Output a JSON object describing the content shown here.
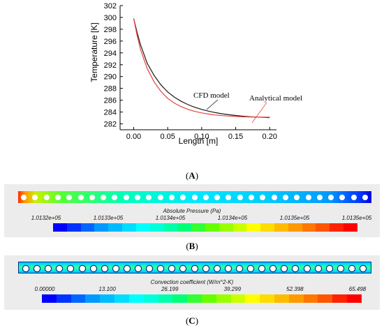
{
  "chart_data": [
    {
      "type": "line",
      "xlabel": "Length [m]",
      "ylabel": "Temperature [K]",
      "xlim": [
        -0.02,
        0.21
      ],
      "ylim": [
        281,
        302
      ],
      "xticks": [
        "0.00",
        "0.05",
        "0.10",
        "0.15",
        "0.20"
      ],
      "yticks": [
        "282",
        "284",
        "286",
        "288",
        "290",
        "292",
        "294",
        "296",
        "298",
        "300",
        "302"
      ],
      "grid": false,
      "series": [
        {
          "name": "CFD model",
          "color": "#1a1a1a",
          "x": [
            0.0,
            0.005,
            0.01,
            0.02,
            0.03,
            0.04,
            0.05,
            0.06,
            0.07,
            0.08,
            0.09,
            0.1,
            0.11,
            0.12,
            0.13,
            0.14,
            0.15,
            0.16,
            0.17,
            0.18,
            0.19,
            0.2
          ],
          "y": [
            299.8,
            297.5,
            295.4,
            292.2,
            290.2,
            288.6,
            287.4,
            286.5,
            285.8,
            285.25,
            284.8,
            284.45,
            284.15,
            283.9,
            283.7,
            283.55,
            283.42,
            283.3,
            283.22,
            283.15,
            283.1,
            283.05
          ]
        },
        {
          "name": "Analytical model",
          "color": "#e8413a",
          "x": [
            0.0,
            0.005,
            0.01,
            0.02,
            0.03,
            0.04,
            0.05,
            0.06,
            0.07,
            0.08,
            0.09,
            0.1,
            0.11,
            0.12,
            0.13,
            0.14,
            0.15,
            0.16,
            0.17,
            0.18,
            0.19,
            0.2
          ],
          "y": [
            299.8,
            297.0,
            294.6,
            291.3,
            289.1,
            287.5,
            286.3,
            285.5,
            284.9,
            284.45,
            284.1,
            283.85,
            283.65,
            283.5,
            283.4,
            283.32,
            283.25,
            283.2,
            283.17,
            283.15,
            283.13,
            283.12
          ]
        }
      ],
      "annotations": [
        "CFD model",
        "Analytical model"
      ]
    },
    {
      "type": "heatmap",
      "title": "Absolute Pressure (Pa)",
      "colorbar_ticks": [
        "1.0132e+05",
        "1.0133e+05",
        "1.0134e+05",
        "1.0134e+05",
        "1.0135e+05",
        "1.0135e+05"
      ]
    },
    {
      "type": "heatmap",
      "title": "Convection coefficient (W/m^2-K)",
      "colorbar_ticks": [
        "0.00000",
        "13.100",
        "26.199",
        "39.299",
        "52.398",
        "65.498"
      ]
    }
  ],
  "labels": {
    "A": "A",
    "B": "B",
    "C": "C"
  }
}
